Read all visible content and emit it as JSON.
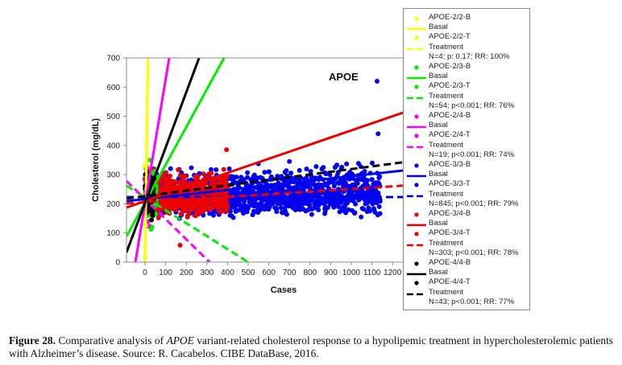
{
  "chart_data": {
    "type": "scatter",
    "title": "",
    "annotation": "APOE",
    "xlabel": "Cases",
    "ylabel": "Cholesterol (mg/dL)",
    "xlim": [
      -90,
      1250
    ],
    "ylim": [
      0,
      700
    ],
    "xticks": [
      0,
      100,
      200,
      300,
      400,
      500,
      600,
      700,
      800,
      900,
      1000,
      1100,
      1200
    ],
    "yticks": [
      0,
      100,
      200,
      300,
      400,
      500,
      600,
      700
    ],
    "grid": false,
    "legend_position": "right",
    "series": [
      {
        "name": "APOE-2/2-B",
        "kind": "points",
        "color": "#ffff00",
        "n_points": 4,
        "x_range": [
          0,
          4
        ],
        "y_center": 250,
        "y_spread": 120
      },
      {
        "name": "Basal",
        "group": "APOE-2/2",
        "kind": "line",
        "style": "solid",
        "color": "#ffff00",
        "points": [
          [
            0,
            0
          ],
          [
            15,
            700
          ]
        ]
      },
      {
        "name": "APOE-2/2-T",
        "kind": "points",
        "color": "#ffff00",
        "n_points": 4,
        "x_range": [
          0,
          4
        ],
        "y_center": 220,
        "y_spread": 100
      },
      {
        "name": "Treatment",
        "group": "APOE-2/2",
        "kind": "line",
        "style": "dashed",
        "color": "#ffff00",
        "points": [
          [
            -2,
            0
          ],
          [
            13,
            700
          ]
        ],
        "stats": "N=4; p: 0.17; RR: 100%"
      },
      {
        "name": "APOE-2/3-B",
        "kind": "points",
        "color": "#00ee00",
        "n_points": 54,
        "x_range": [
          0,
          54
        ],
        "y_center": 260,
        "y_spread": 80
      },
      {
        "name": "Basal",
        "group": "APOE-2/3",
        "kind": "line",
        "style": "solid",
        "color": "#00ee00",
        "points": [
          [
            -90,
            88
          ],
          [
            383,
            700
          ]
        ]
      },
      {
        "name": "APOE-2/3-T",
        "kind": "points",
        "color": "#00ee00",
        "n_points": 54,
        "x_range": [
          0,
          54
        ],
        "y_center": 200,
        "y_spread": 80
      },
      {
        "name": "Treatment",
        "group": "APOE-2/3",
        "kind": "line",
        "style": "dashed",
        "color": "#00ee00",
        "points": [
          [
            -90,
            262
          ],
          [
            500,
            0
          ]
        ],
        "stats": "N=54; p<0.001; RR: 76%"
      },
      {
        "name": "APOE-2/4-B",
        "kind": "points",
        "color": "#ff00ff",
        "n_points": 19,
        "x_range": [
          0,
          19
        ],
        "y_center": 270,
        "y_spread": 80
      },
      {
        "name": "Basal",
        "group": "APOE-2/4",
        "kind": "line",
        "style": "solid",
        "color": "#ff00ff",
        "points": [
          [
            -47,
            0
          ],
          [
            117,
            700
          ]
        ]
      },
      {
        "name": "APOE-2/4-T",
        "kind": "points",
        "color": "#ff00ff",
        "n_points": 19,
        "x_range": [
          0,
          19
        ],
        "y_center": 200,
        "y_spread": 80
      },
      {
        "name": "Treatment",
        "group": "APOE-2/4",
        "kind": "line",
        "style": "dashed",
        "color": "#ff00ff",
        "points": [
          [
            -90,
            278
          ],
          [
            313,
            0
          ]
        ],
        "stats": "N=19; p<0.001; RR: 74%"
      },
      {
        "name": "APOE-3/3-B",
        "kind": "points",
        "color": "#0000ee",
        "n_points": 845,
        "x_range": [
          0,
          1140
        ],
        "y_center": 250,
        "y_spread": 60,
        "outliers": [
          [
            1125,
            620
          ],
          [
            1130,
            440
          ],
          [
            700,
            345
          ]
        ]
      },
      {
        "name": "Basal",
        "group": "APOE-3/3",
        "kind": "line",
        "style": "solid",
        "color": "#0000ee",
        "points": [
          [
            -90,
            209
          ],
          [
            1250,
            314
          ]
        ]
      },
      {
        "name": "APOE-3/3-T",
        "kind": "points",
        "color": "#0000ee",
        "n_points": 845,
        "x_range": [
          0,
          1140
        ],
        "y_center": 200,
        "y_spread": 45
      },
      {
        "name": "Treatment",
        "group": "APOE-3/3",
        "kind": "line",
        "style": "dashed",
        "color": "#0000ee",
        "points": [
          [
            -90,
            223
          ],
          [
            1250,
            223
          ]
        ],
        "stats": "N=845; p<0.001; RR: 79%"
      },
      {
        "name": "APOE-3/4-B",
        "kind": "points",
        "color": "#ee0000",
        "n_points": 303,
        "x_range": [
          0,
          400
        ],
        "y_center": 250,
        "y_spread": 55,
        "outliers": [
          [
            395,
            385
          ],
          [
            170,
            58
          ]
        ]
      },
      {
        "name": "Basal",
        "group": "APOE-3/4",
        "kind": "line",
        "style": "solid",
        "color": "#ee0000",
        "points": [
          [
            -90,
            187
          ],
          [
            1250,
            512
          ]
        ]
      },
      {
        "name": "APOE-3/4-T",
        "kind": "points",
        "color": "#ee0000",
        "n_points": 303,
        "x_range": [
          0,
          400
        ],
        "y_center": 210,
        "y_spread": 45
      },
      {
        "name": "Treatment",
        "group": "APOE-3/4",
        "kind": "line",
        "style": "dashed",
        "color": "#ee0000",
        "points": [
          [
            -90,
            201
          ],
          [
            1250,
            262
          ]
        ],
        "stats": "N=303; p<0.001; RR: 78%"
      },
      {
        "name": "APOE-4/4-B",
        "kind": "points",
        "color": "#000000",
        "n_points": 43,
        "x_range": [
          0,
          43
        ],
        "y_center": 260,
        "y_spread": 60
      },
      {
        "name": "Basal",
        "group": "APOE-4/4",
        "kind": "line",
        "style": "solid",
        "color": "#000000",
        "points": [
          [
            -90,
            33
          ],
          [
            262,
            700
          ]
        ]
      },
      {
        "name": "APOE-4/4-T",
        "kind": "points",
        "color": "#000000",
        "n_points": 43,
        "x_range": [
          0,
          43
        ],
        "y_center": 210,
        "y_spread": 50
      },
      {
        "name": "Treatment",
        "group": "APOE-4/4",
        "kind": "line",
        "style": "dashed",
        "color": "#000000",
        "points": [
          [
            -90,
            218
          ],
          [
            1250,
            342
          ]
        ],
        "stats": "N=43; p<0.001; RR: 77%"
      }
    ]
  },
  "legend": {
    "items": [
      {
        "type": "dot",
        "color": "#ffff00",
        "label": "APOE-2/2-B"
      },
      {
        "type": "solid",
        "color": "#ffff00",
        "label": "Basal"
      },
      {
        "type": "dot",
        "color": "#ffff00",
        "label": "APOE-2/2-T"
      },
      {
        "type": "dashed",
        "color": "#ffff00",
        "label": "Treatment"
      },
      {
        "type": "text",
        "color": "",
        "label": "N=4; p: 0.17; RR: 100%"
      },
      {
        "type": "dot",
        "color": "#00ee00",
        "label": "APOE-2/3-B"
      },
      {
        "type": "solid",
        "color": "#00ee00",
        "label": "Basal"
      },
      {
        "type": "dot",
        "color": "#00ee00",
        "label": "APOE-2/3-T"
      },
      {
        "type": "dashed",
        "color": "#00ee00",
        "label": "Treatment"
      },
      {
        "type": "text",
        "color": "",
        "label": "N=54; p<0.001; RR: 76%"
      },
      {
        "type": "dot",
        "color": "#ff00ff",
        "label": "APOE-2/4-B"
      },
      {
        "type": "solid",
        "color": "#ff00ff",
        "label": "Basal"
      },
      {
        "type": "dot",
        "color": "#ff00ff",
        "label": "APOE-2/4-T"
      },
      {
        "type": "dashed",
        "color": "#ff00ff",
        "label": "Treatment"
      },
      {
        "type": "text",
        "color": "",
        "label": "N=19; p<0.001; RR: 74%"
      },
      {
        "type": "dot",
        "color": "#0000ee",
        "label": "APOE-3/3-B"
      },
      {
        "type": "solid",
        "color": "#0000ee",
        "label": "Basal"
      },
      {
        "type": "dot",
        "color": "#0000ee",
        "label": "APOE-3/3-T"
      },
      {
        "type": "dashed",
        "color": "#0000ee",
        "label": "Treatment"
      },
      {
        "type": "text",
        "color": "",
        "label": "N=845; p<0.001; RR: 79%"
      },
      {
        "type": "dot",
        "color": "#ee0000",
        "label": "APOE-3/4-B"
      },
      {
        "type": "solid",
        "color": "#ee0000",
        "label": "Basal"
      },
      {
        "type": "dot",
        "color": "#ee0000",
        "label": "APOE-3/4-T"
      },
      {
        "type": "dashed",
        "color": "#ee0000",
        "label": "Treatment"
      },
      {
        "type": "text",
        "color": "",
        "label": "N=303; p<0.001; RR: 78%"
      },
      {
        "type": "dot",
        "color": "#000000",
        "label": "APOE-4/4-B"
      },
      {
        "type": "solid",
        "color": "#000000",
        "label": "Basal"
      },
      {
        "type": "dot",
        "color": "#000000",
        "label": "APOE-4/4-T"
      },
      {
        "type": "dashed",
        "color": "#000000",
        "label": "Treatment"
      },
      {
        "type": "text",
        "color": "",
        "label": "N=43; p<0.001; RR: 77%"
      }
    ]
  },
  "caption": {
    "label": "Figure 28.",
    "text_before": " Comparative analysis of ",
    "gene": "APOE",
    "text_after": " variant-related cholesterol response to a hypolipemic treatment in hypercholesterolemic patients with Alzheimer’s disease. Source: R. Cacabelos. CIBE DataBase, 2016."
  }
}
